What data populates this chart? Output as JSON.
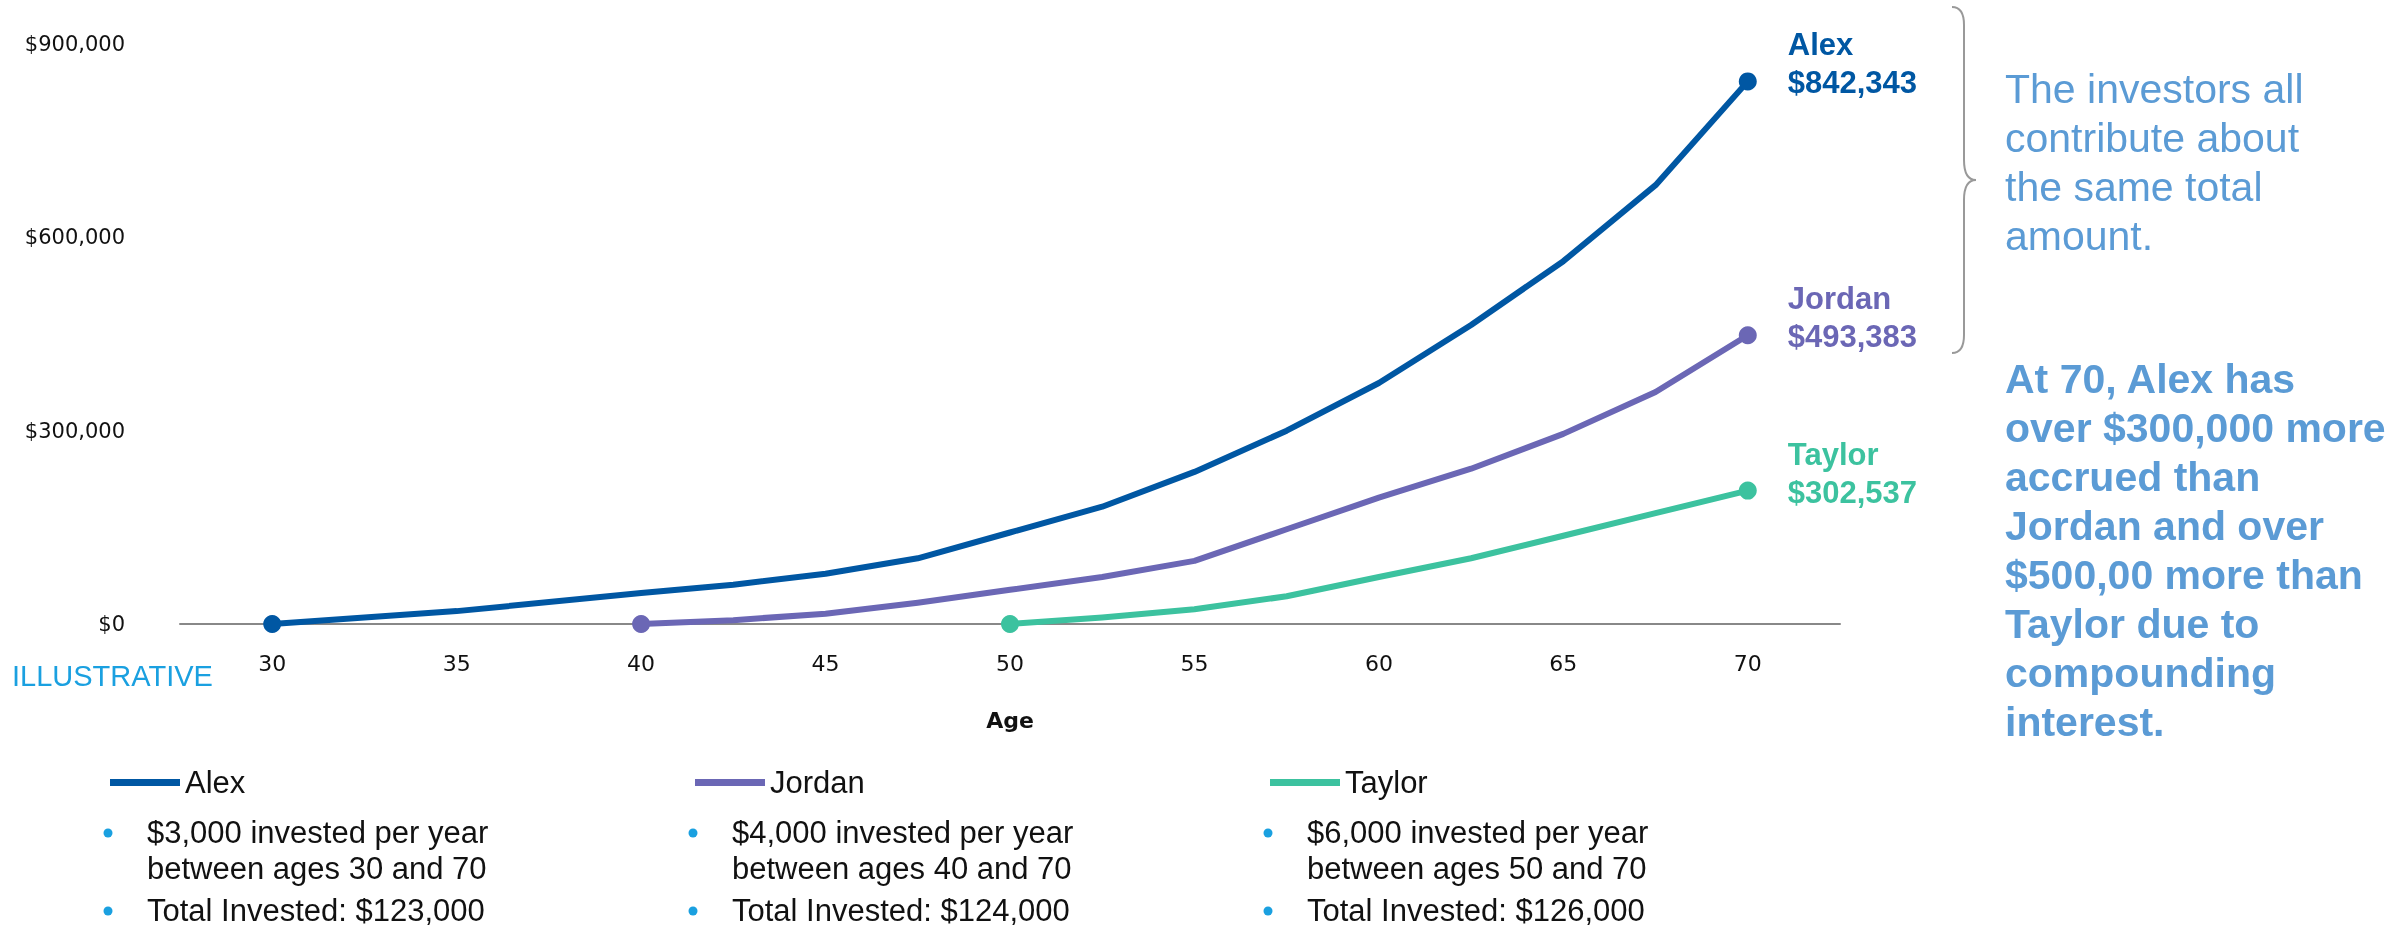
{
  "chart_data": {
    "type": "line",
    "xlabel": "Age",
    "xlim": [
      27.5,
      72.5
    ],
    "xticks": [
      30,
      35,
      40,
      45,
      50,
      55,
      60,
      65,
      70
    ],
    "ylim": [
      0,
      900000
    ],
    "yticks": [
      {
        "value": 0,
        "label": "$0"
      },
      {
        "value": 300000,
        "label": "$300,000"
      },
      {
        "value": 600000,
        "label": "$600,000"
      },
      {
        "value": 900000,
        "label": "$900,000"
      }
    ],
    "grid": false,
    "legend": "bottom",
    "line_style": "solid",
    "series": [
      {
        "name": "Alex",
        "color": "#0057a3",
        "x": [
          30,
          35,
          40,
          42.5,
          45,
          47.5,
          50,
          52.5,
          55,
          57.5,
          60,
          62.5,
          65,
          67.5,
          70
        ],
        "values": [
          0,
          20000,
          48000,
          61000,
          78000,
          102000,
          142000,
          182000,
          236000,
          300000,
          374000,
          464000,
          563000,
          681000,
          842000
        ]
      },
      {
        "name": "Jordan",
        "color": "#6b67b5",
        "x": [
          40,
          42.5,
          45,
          47.5,
          50,
          52.5,
          55,
          57.5,
          60,
          62.5,
          65,
          67.5,
          70
        ],
        "values": [
          0,
          6000,
          16000,
          33000,
          53000,
          73000,
          98000,
          147000,
          196000,
          241000,
          295000,
          360000,
          448000
        ]
      },
      {
        "name": "Taylor",
        "color": "#3cc29f",
        "x": [
          50,
          52.5,
          55,
          57.5,
          60,
          62.5,
          65,
          67.5,
          70
        ],
        "values": [
          0,
          10000,
          23000,
          43000,
          73000,
          102000,
          137000,
          172000,
          207000
        ]
      }
    ],
    "annotations": [
      "$842,343",
      "$493,383",
      "$302,537",
      "ILLUSTRATIVE",
      "$3,000 invested per year between ages 30 and 70",
      "Total Invested: $123,000",
      "$4,000 invested per year between ages 40 and 70",
      "Total Invested: $124,000",
      "$6,000 invested per year between ages 50 and 70",
      "Total Invested: $126,000",
      "The investors all contribute about the same total amount.",
      "At 70, Alex has over $300,000 more accrued than Jordan and over $500,00 more than Taylor due to compounding interest."
    ]
  }
}
